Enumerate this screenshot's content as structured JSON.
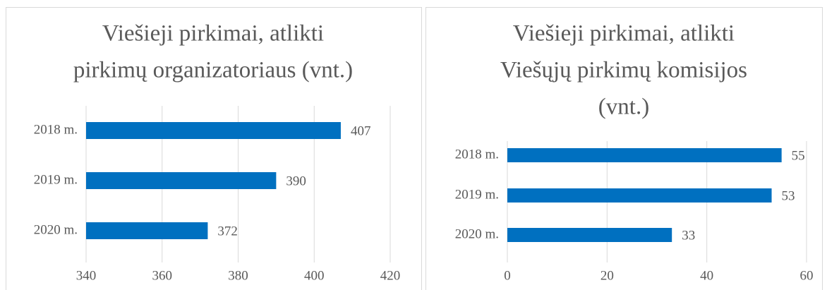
{
  "chart_data": [
    {
      "type": "bar",
      "orientation": "horizontal",
      "title": [
        "Viešieji pirkimai, atlikti",
        "pirkimų organizatoriaus (vnt.)"
      ],
      "categories": [
        "2018 m.",
        "2019 m.",
        "2020 m."
      ],
      "values": [
        407,
        390,
        372
      ],
      "color": "#0070c0",
      "xlim": [
        340,
        420
      ],
      "xticks": [
        340,
        360,
        380,
        400,
        420
      ],
      "grid": true
    },
    {
      "type": "bar",
      "orientation": "horizontal",
      "title": [
        "Viešieji pirkimai, atlikti",
        "Viešųjų pirkimų komisijos",
        "(vnt.)"
      ],
      "categories": [
        "2018 m.",
        "2019 m.",
        "2020 m."
      ],
      "values": [
        55,
        53,
        33
      ],
      "color": "#0070c0",
      "xlim": [
        0,
        60
      ],
      "xticks": [
        0,
        20,
        40,
        60
      ],
      "grid": true
    }
  ]
}
